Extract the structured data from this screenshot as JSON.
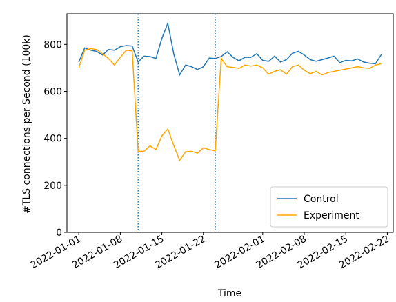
{
  "chart_data": {
    "type": "line",
    "xlabel": "Time",
    "ylabel": "#TLS connections per Second (100k)",
    "x": [
      "2022-01-01",
      "2022-01-02",
      "2022-01-03",
      "2022-01-04",
      "2022-01-05",
      "2022-01-06",
      "2022-01-07",
      "2022-01-08",
      "2022-01-09",
      "2022-01-10",
      "2022-01-11",
      "2022-01-12",
      "2022-01-13",
      "2022-01-14",
      "2022-01-15",
      "2022-01-16",
      "2022-01-17",
      "2022-01-18",
      "2022-01-19",
      "2022-01-20",
      "2022-01-21",
      "2022-01-22",
      "2022-01-23",
      "2022-01-24",
      "2022-01-25",
      "2022-01-26",
      "2022-01-27",
      "2022-01-28",
      "2022-01-29",
      "2022-01-30",
      "2022-01-31",
      "2022-02-01",
      "2022-02-02",
      "2022-02-03",
      "2022-02-04",
      "2022-02-05",
      "2022-02-06",
      "2022-02-07",
      "2022-02-08",
      "2022-02-09",
      "2022-02-10",
      "2022-02-11",
      "2022-02-12",
      "2022-02-13",
      "2022-02-14",
      "2022-02-15",
      "2022-02-16",
      "2022-02-17",
      "2022-02-18",
      "2022-02-19",
      "2022-02-20",
      "2022-02-21"
    ],
    "series": [
      {
        "name": "Control",
        "color": "#1f77b4",
        "values": [
          725,
          785,
          775,
          770,
          755,
          778,
          775,
          790,
          795,
          793,
          725,
          750,
          748,
          740,
          825,
          890,
          760,
          670,
          712,
          705,
          693,
          705,
          742,
          740,
          748,
          768,
          745,
          730,
          745,
          745,
          760,
          732,
          728,
          750,
          725,
          735,
          762,
          770,
          755,
          735,
          728,
          735,
          742,
          750,
          722,
          732,
          730,
          738,
          725,
          720,
          718,
          757
        ]
      },
      {
        "name": "Experiment",
        "color": "#ffa500",
        "values": [
          700,
          775,
          782,
          778,
          760,
          740,
          712,
          745,
          775,
          772,
          345,
          345,
          368,
          352,
          410,
          440,
          370,
          307,
          343,
          345,
          337,
          360,
          352,
          347,
          740,
          705,
          702,
          698,
          712,
          708,
          712,
          700,
          673,
          685,
          692,
          673,
          705,
          712,
          690,
          675,
          685,
          670,
          680,
          685,
          690,
          695,
          700,
          705,
          700,
          698,
          712,
          718
        ]
      }
    ],
    "vlines": [
      "2022-01-11",
      "2022-01-24"
    ],
    "xlim": [
      "2021-12-30",
      "2022-02-23"
    ],
    "xticks": [
      "2022-01-01",
      "2022-01-08",
      "2022-01-15",
      "2022-01-22",
      "2022-02-01",
      "2022-02-08",
      "2022-02-15",
      "2022-02-22"
    ],
    "ylim": [
      0,
      930
    ],
    "yticks": [
      0,
      200,
      400,
      600,
      800
    ],
    "legend": "lower right"
  }
}
